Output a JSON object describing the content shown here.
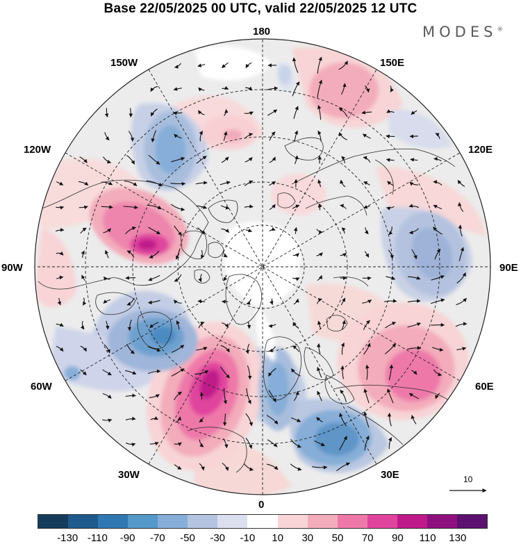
{
  "title": "Base 22/05/2025 00 UTC, valid 22/05/2025 12 UTC",
  "brand": "MODES",
  "brand_mark": "®",
  "map": {
    "projection": "north-polar-stereographic",
    "longitude_labels": {
      "top": "180",
      "bottom": "0",
      "left": "90W",
      "right": "90E",
      "upper_left_1": "150W",
      "upper_left_2": "120W",
      "lower_left_1": "60W",
      "lower_left_2": "30W",
      "upper_right_1": "150E",
      "upper_right_2": "120E",
      "lower_right_1": "60E",
      "lower_right_2": "30E"
    },
    "vector_scale_label": "10",
    "colors": {
      "land_outline": "#2b2b2b",
      "grid": "#222222",
      "vector": "#111111"
    }
  },
  "colorbar": {
    "tick_labels": [
      "-130",
      "-110",
      "-90",
      "-70",
      "-50",
      "-30",
      "-10",
      "10",
      "30",
      "50",
      "70",
      "90",
      "110",
      "130"
    ],
    "colors": [
      "#163c5c",
      "#1f5a8c",
      "#2f78b2",
      "#5499c9",
      "#86aed8",
      "#b4c4e0",
      "#dcdfee",
      "#ffffff",
      "#f8d4d6",
      "#f3acbb",
      "#ee79a9",
      "#e0449d",
      "#bf1a8a",
      "#8e107f",
      "#5c106f"
    ]
  }
}
